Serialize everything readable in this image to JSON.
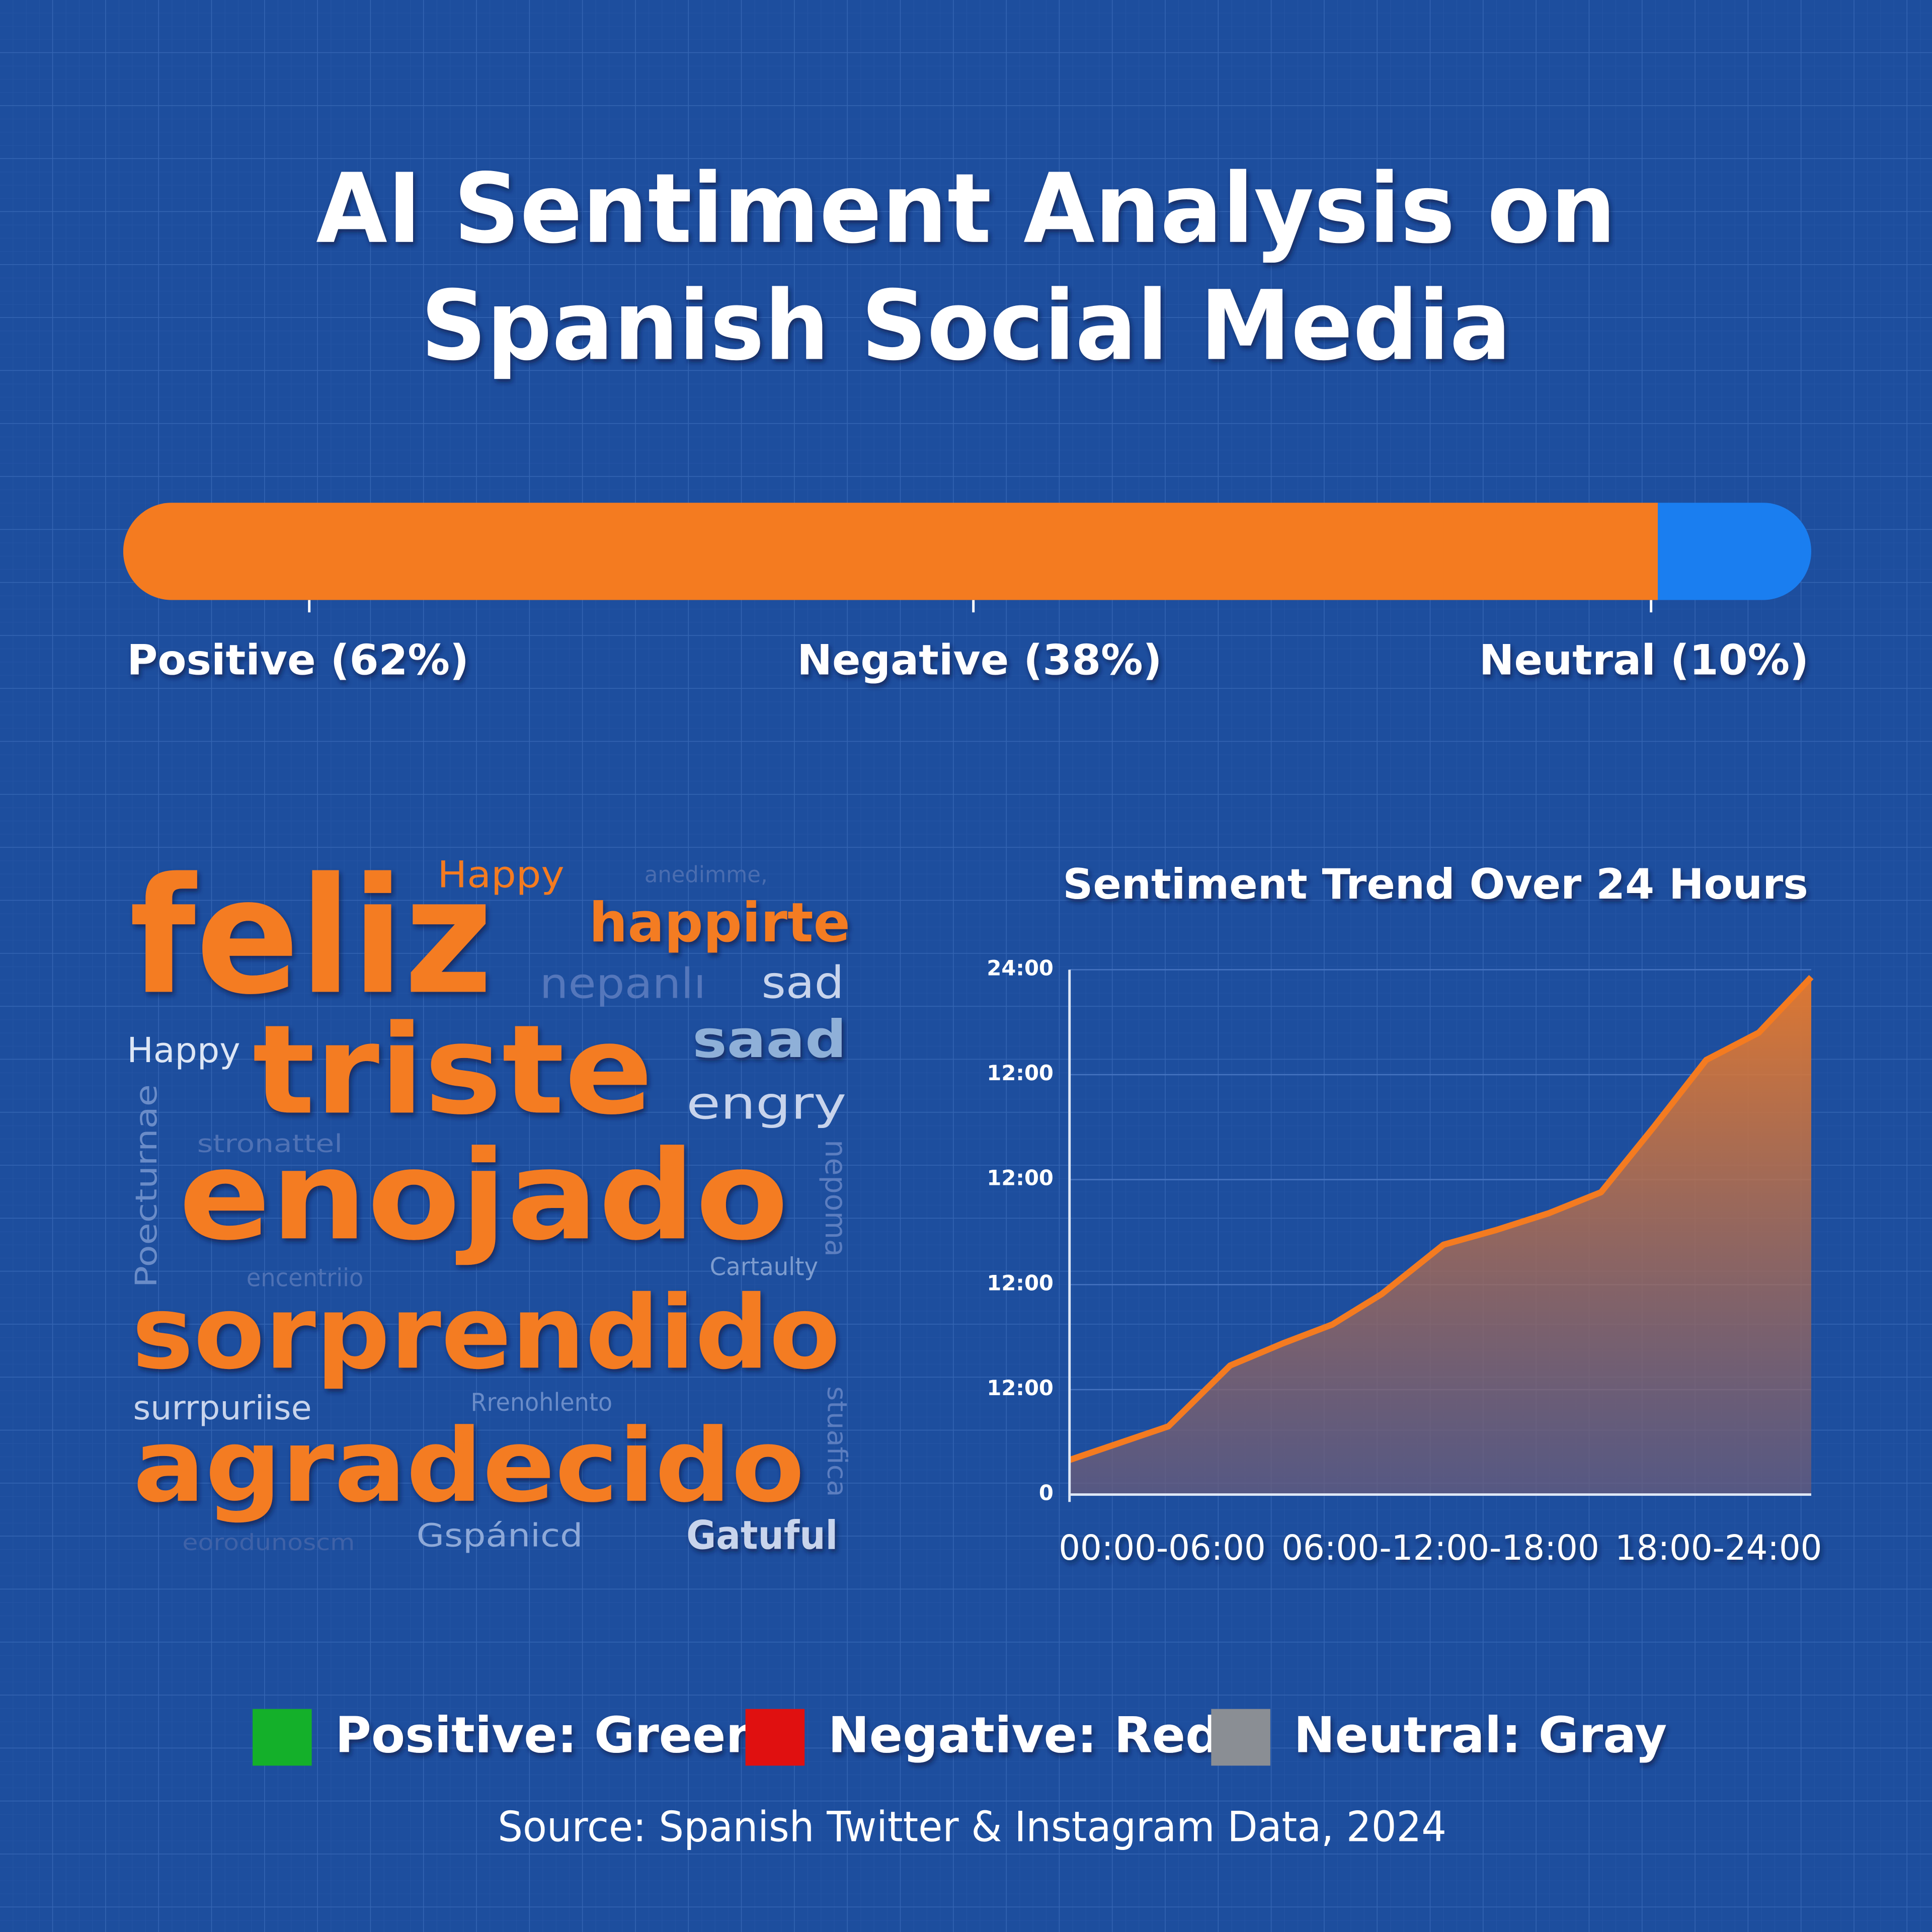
{
  "title": [
    "AI Sentiment Analysis on",
    "Spanish Social Media"
  ],
  "chart_data": [
    {
      "type": "stacked_bar",
      "orientation": "horizontal",
      "series": [
        {
          "name": "Positive",
          "color": "#f47b20",
          "values": [
            62
          ],
          "value_labels": [
            "Positive (62%)"
          ]
        },
        {
          "name": "Negative",
          "color": "#f47b20",
          "values": [
            38
          ],
          "value_labels": [
            "Negative (38%)"
          ]
        },
        {
          "name": "Neutral",
          "color": "#1a7ef0",
          "values": [
            10
          ],
          "value_labels": [
            "Neutral (10%)"
          ]
        }
      ]
    },
    {
      "type": "area",
      "title": "Sentiment Trend Over 24 Hours",
      "x": [
        0,
        3.2,
        5.2,
        6.9,
        8.5,
        10.1,
        12.1,
        13.8,
        15.5,
        17.2,
        18.9,
        20.6,
        22.3,
        24
      ],
      "series": [
        {
          "color": "#f47b20",
          "values": [
            0.33,
            0.65,
            1.23,
            1.44,
            1.62,
            1.91,
            2.38,
            2.52,
            2.68,
            2.88,
            3.5,
            4.14,
            4.4,
            4.93
          ]
        }
      ],
      "xlim": [
        0,
        24
      ],
      "ylim": [
        0,
        5
      ],
      "xticks": [
        {
          "value": 3,
          "label": "00:00-06:00"
        },
        {
          "value": 12,
          "label": "06:00-12:00-18:00"
        },
        {
          "value": 21,
          "label": "18:00-24:00"
        }
      ],
      "yticks": [
        0,
        {
          "value": 1,
          "label": "12:00"
        },
        {
          "value": 2,
          "label": "12:00"
        },
        {
          "value": 3,
          "label": "12:00"
        },
        {
          "value": 4,
          "label": "12:00"
        },
        {
          "value": 5,
          "label": "24:00"
        }
      ]
    }
  ],
  "word_cloud": {
    "words": [
      "Happy",
      "anedimme,",
      "feliz",
      "happirte",
      "nepanlı",
      "sad",
      "Happy",
      "triste",
      "saad",
      "engry",
      "stronattel",
      "enojado",
      "Poecturnae",
      "nepoma",
      "Cartaulty",
      "encentriio",
      "sorprendido",
      "surrpuriise",
      "Rrenohlento",
      "stuafica",
      "agradecido",
      "eorodunoscm",
      "Gspánicd",
      "Gatuful"
    ]
  },
  "legend": {
    "items": [
      {
        "label": "Positive: Green",
        "color": "#14b02a"
      },
      {
        "label": "Negative: Red",
        "color": "#e01010"
      },
      {
        "label": "Neutral: Gray",
        "color": "#8a8e94"
      }
    ]
  },
  "source": "Source: Spanish Twitter & Instagram Data, 2024"
}
